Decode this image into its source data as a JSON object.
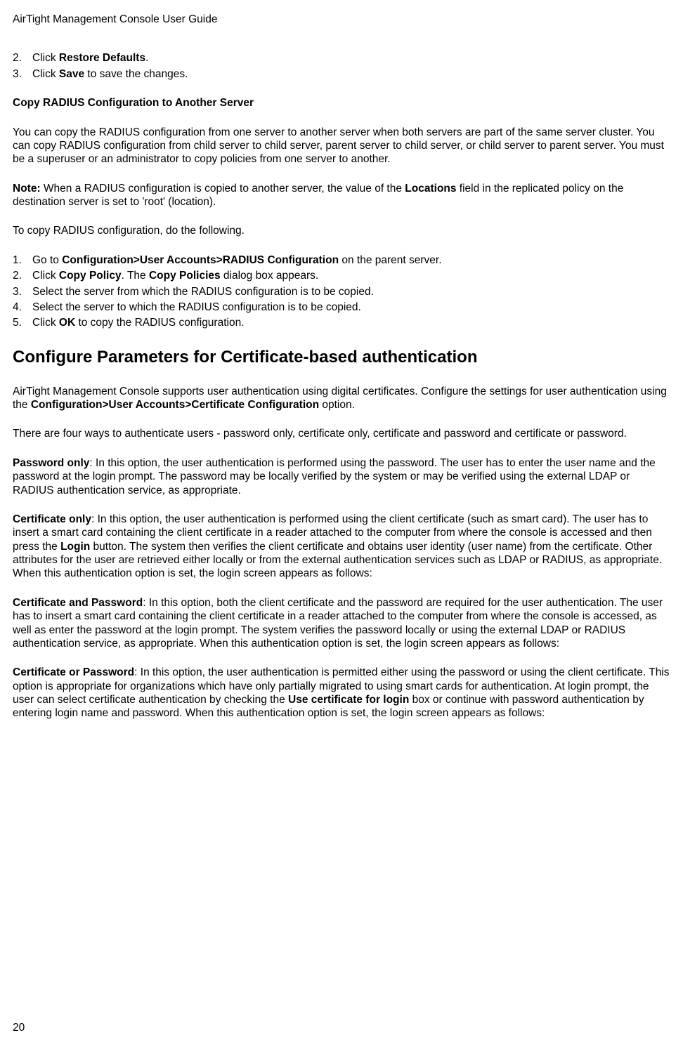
{
  "header": {
    "title": "AirTight Management Console User Guide"
  },
  "list1": {
    "item2_num": "2.",
    "item2_pre": "Click ",
    "item2_bold": "Restore Defaults",
    "item2_post": ".",
    "item3_num": "3.",
    "item3_pre": "Click ",
    "item3_bold": "Save",
    "item3_post": " to save the changes."
  },
  "section1": {
    "title": "Copy RADIUS Configuration to Another Server",
    "para1": "You can copy the RADIUS configuration from one server to another server when both servers are part of the same server cluster. You can copy RADIUS configuration from child server to child server, parent server to child server, or child server to parent server. You must be a superuser or an administrator to copy policies from one server to another.",
    "para2_pre": "Note:",
    "para2_mid": " When a RADIUS configuration is copied to another server, the value of the ",
    "para2_bold": "Locations",
    "para2_post": " field in the replicated policy on the destination server is set to 'root' (location).",
    "para3": "To copy RADIUS configuration, do the following."
  },
  "list2": {
    "i1_num": "1.",
    "i1_pre": "Go to ",
    "i1_bold": "Configuration>User Accounts>RADIUS Configuration",
    "i1_post": " on the parent server.",
    "i2_num": "2.",
    "i2_pre": "Click ",
    "i2_bold1": "Copy Policy",
    "i2_mid": ". The ",
    "i2_bold2": "Copy Policies",
    "i2_post": " dialog box appears.",
    "i3_num": "3.",
    "i3_text": "Select the server from which the RADIUS configuration is to be copied.",
    "i4_num": "4.",
    "i4_text": "Select the server to which the RADIUS configuration is to be copied.",
    "i5_num": "5.",
    "i5_pre": "Click ",
    "i5_bold": "OK",
    "i5_post": " to copy the RADIUS configuration."
  },
  "section2": {
    "heading": "Configure Parameters for Certificate-based authentication",
    "p1_pre": "AirTight Management Console supports user authentication using digital certificates. Configure the settings for user authentication using the ",
    "p1_bold": "Configuration>User Accounts>Certificate Configuration",
    "p1_post": " option.",
    "p2": "There are four ways to authenticate users - password only, certificate only, certificate and password and certificate or password.",
    "p3_bold": "Password only",
    "p3_text": ":  In this option, the user authentication is performed using the password. The user has to enter the user name and the password at the login prompt. The password may be locally verified by the system or may be verified using the external LDAP or RADIUS authentication service, as appropriate.",
    "p4_bold": "Certificate only",
    "p4_pre": ": In this option, the user authentication is performed using the client certificate (such as smart card). The user has to insert a smart card containing the client certificate in a reader attached to the computer from where the console is accessed and then press the ",
    "p4_bold2": "Login",
    "p4_post": " button. The system then verifies the client certificate and obtains user identity (user name) from the certificate. Other attributes for the user are retrieved either locally or from the external authentication services such as LDAP or RADIUS, as appropriate. When this authentication option is set, the login screen appears as follows:",
    "p5_bold": "Certificate and Password",
    "p5_text": ": In this option, both the client certificate and the password are required for the user authentication. The user has to insert a smart card containing the client certificate in a reader attached to the computer from where the console is accessed, as well as enter the password at the login prompt. The system verifies the password locally or using the external LDAP or RADIUS authentication service, as appropriate. When this authentication option is set, the login screen appears as follows:",
    "p6_bold": "Certificate or Password",
    "p6_pre": ": In this option, the user authentication is permitted either using the password or using the client certificate. This option is appropriate for organizations which have only partially migrated to using smart cards for authentication. At login prompt, the user can select certificate authentication by checking the ",
    "p6_bold2": "Use certificate for login",
    "p6_post": " box or continue with password authentication by entering login name and password. When this authentication option is set, the login screen appears as follows:"
  },
  "footer": {
    "page": "20"
  }
}
